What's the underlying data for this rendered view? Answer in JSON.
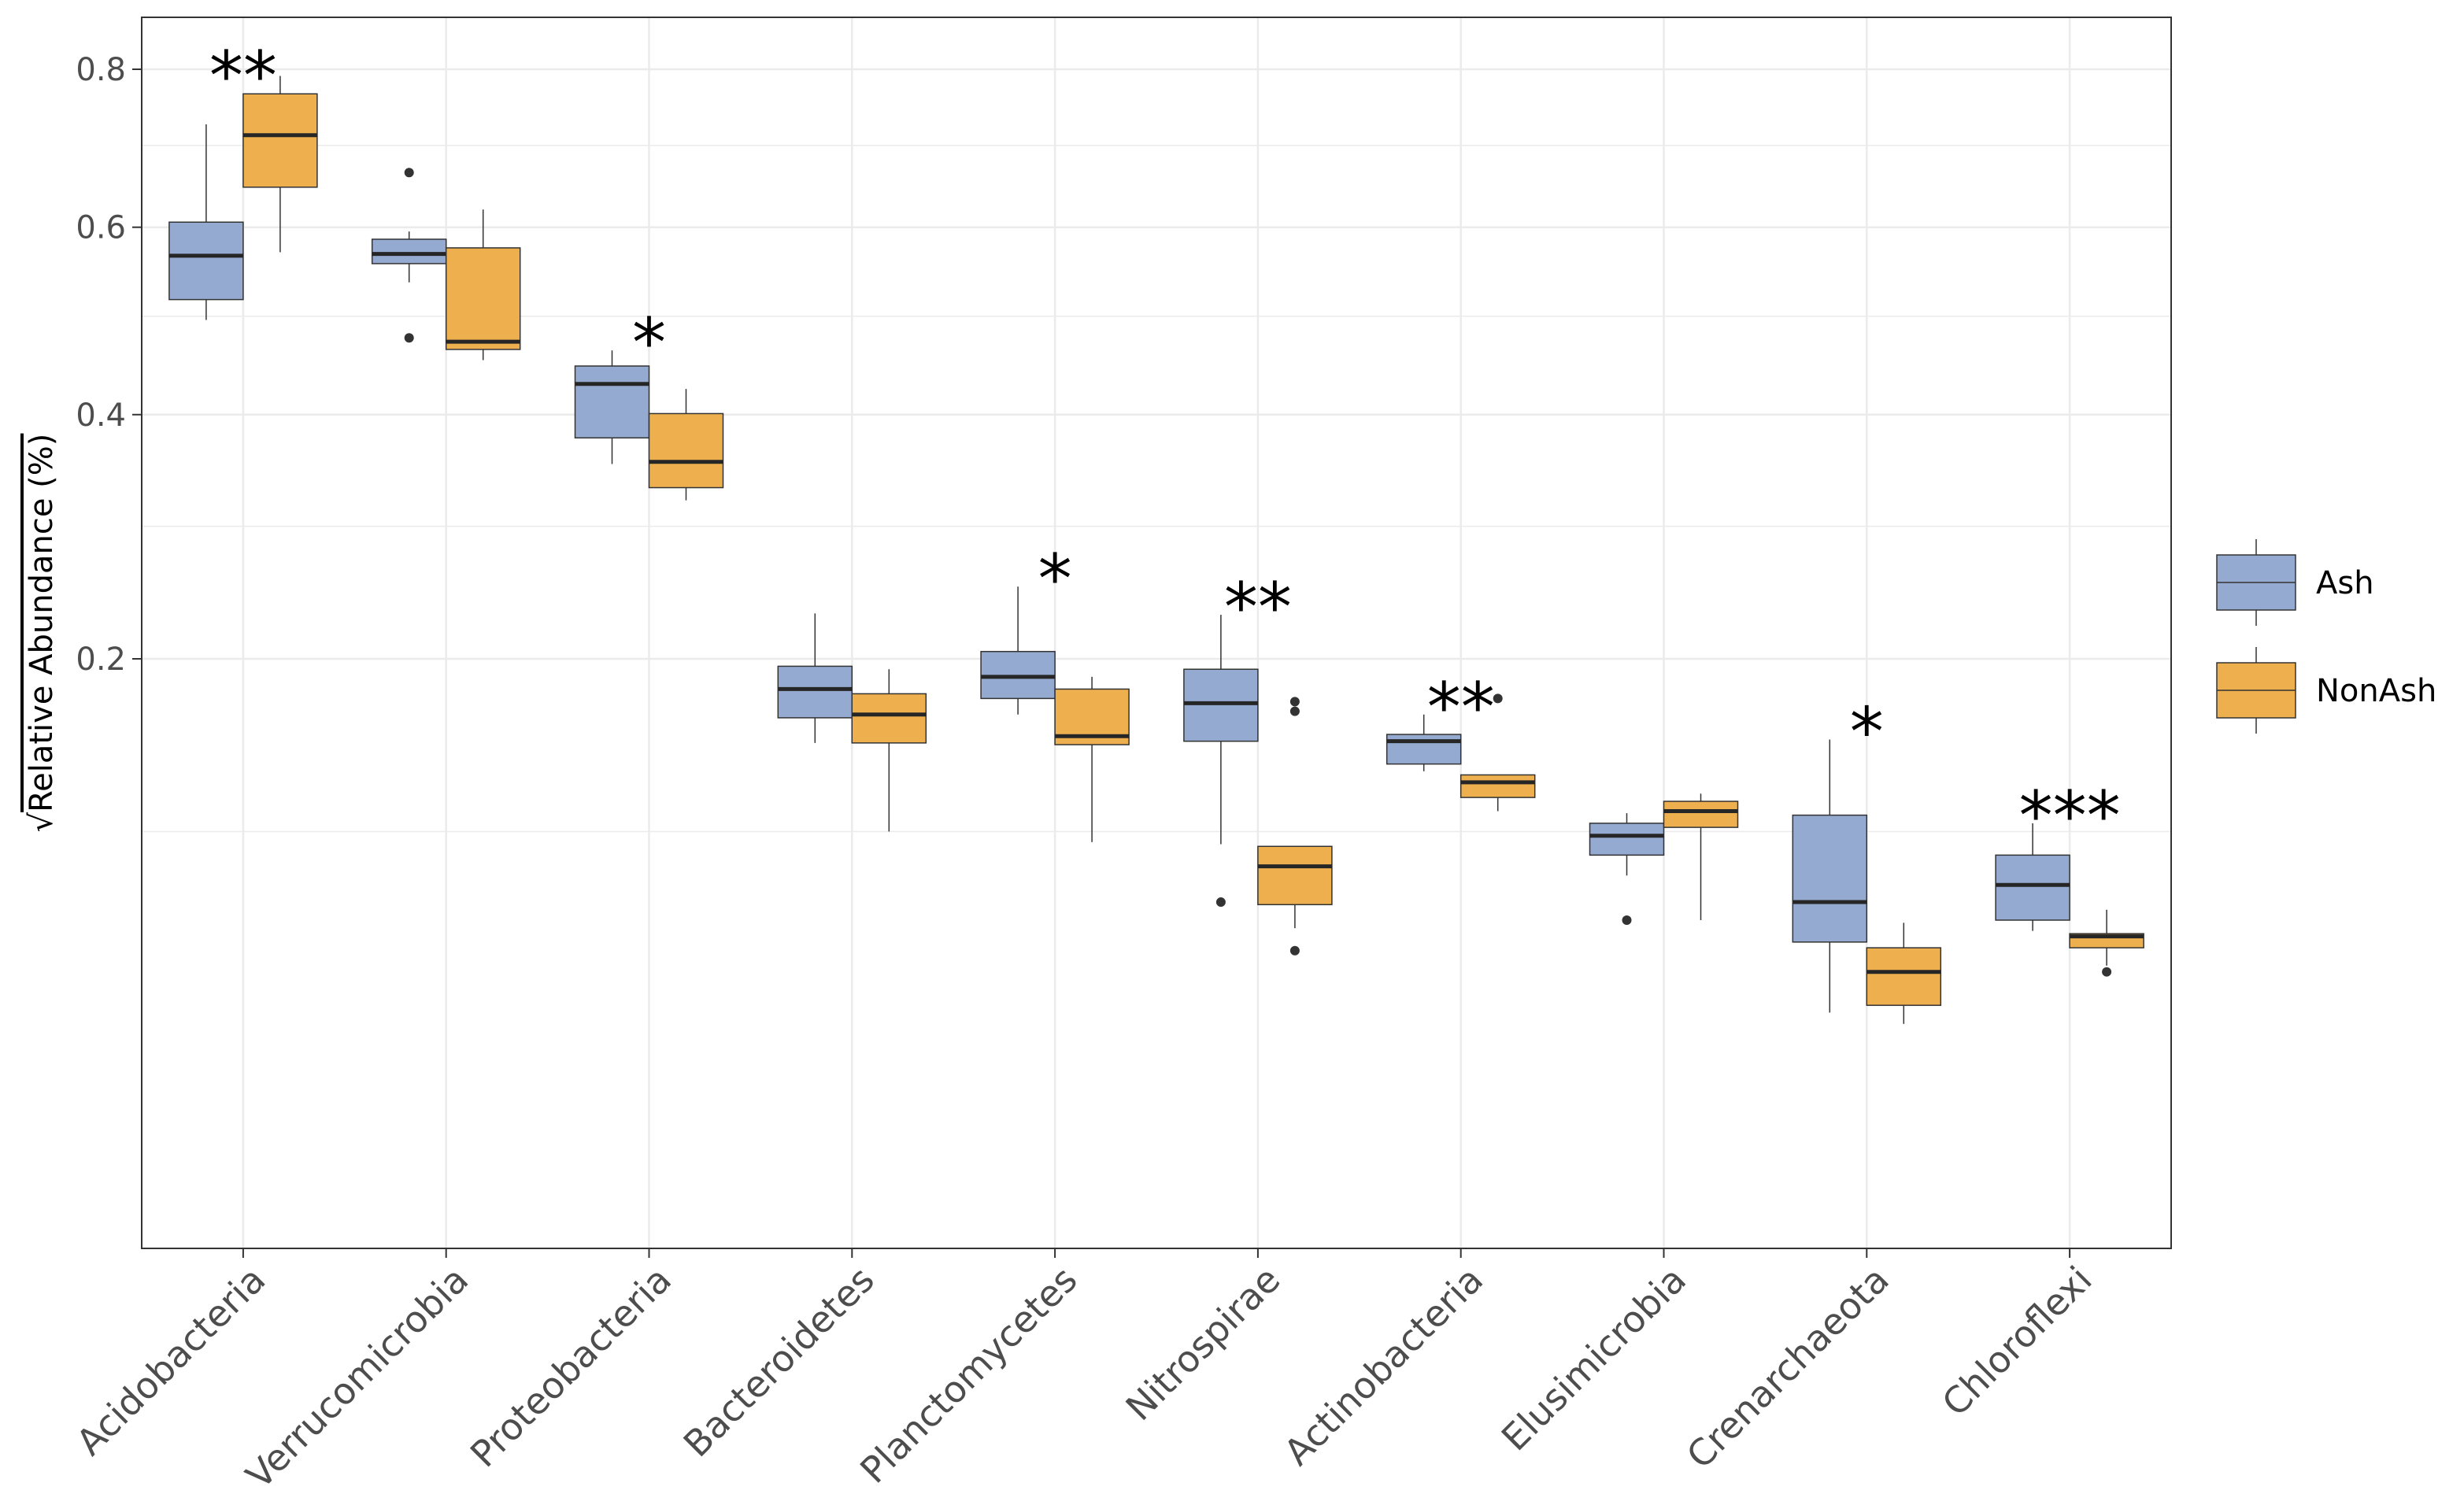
{
  "chart_data": {
    "type": "boxplot",
    "title": "",
    "xlabel": "",
    "ylabel": "Relative Abundance (%)",
    "ylabel_prefix": "√",
    "y_scale": "sqrt",
    "ylim": [
      0,
      0.84
    ],
    "y_ticks": [
      0.2,
      0.4,
      0.6,
      0.8
    ],
    "y_tick_labels": [
      "0.2",
      "0.4",
      "0.6",
      "0.8"
    ],
    "grid": true,
    "legend": {
      "position": "right",
      "entries": [
        "Ash",
        "NonAsh"
      ]
    },
    "colors": {
      "Ash": "#95aad0",
      "NonAsh": "#eeb04f",
      "median": "#262626",
      "border": "#333333",
      "grid": "#ebebeb"
    },
    "categories": [
      "Acidobacteria",
      "Verrucomicrobia",
      "Proteobacteria",
      "Bacteroidetes",
      "Planctomycetes",
      "Nitrospirae",
      "Actinobacteria",
      "Elusimicrobia",
      "Crenarchaeota",
      "Chloroflexi"
    ],
    "significance": [
      "**",
      "",
      "*",
      "",
      "*",
      "**",
      "**",
      "",
      "*",
      "***"
    ],
    "series": [
      {
        "name": "Ash",
        "boxes": [
          {
            "min": 0.496,
            "q1": 0.518,
            "median": 0.567,
            "q3": 0.606,
            "max": 0.727,
            "outliers": []
          },
          {
            "min": 0.537,
            "q1": 0.558,
            "median": 0.569,
            "q3": 0.586,
            "max": 0.595,
            "outliers": [
              0.666,
              0.477
            ]
          },
          {
            "min": 0.354,
            "q1": 0.378,
            "median": 0.43,
            "q3": 0.448,
            "max": 0.464,
            "outliers": []
          },
          {
            "min": 0.147,
            "q1": 0.162,
            "median": 0.18,
            "q3": 0.195,
            "max": 0.232,
            "outliers": []
          },
          {
            "min": 0.164,
            "q1": 0.174,
            "median": 0.188,
            "q3": 0.205,
            "max": 0.252,
            "outliers": []
          },
          {
            "min": 0.094,
            "q1": 0.148,
            "median": 0.171,
            "q3": 0.193,
            "max": 0.231,
            "outliers": [
              0.069
            ]
          },
          {
            "min": 0.131,
            "q1": 0.135,
            "median": 0.148,
            "q3": 0.152,
            "max": 0.164,
            "outliers": []
          },
          {
            "min": 0.08,
            "q1": 0.089,
            "median": 0.098,
            "q3": 0.104,
            "max": 0.109,
            "outliers": [
              0.062
            ]
          },
          {
            "min": 0.032,
            "q1": 0.054,
            "median": 0.069,
            "q3": 0.108,
            "max": 0.149,
            "outliers": []
          },
          {
            "min": 0.058,
            "q1": 0.062,
            "median": 0.076,
            "q3": 0.089,
            "max": 0.104,
            "outliers": []
          }
        ]
      },
      {
        "name": "NonAsh",
        "boxes": [
          {
            "min": 0.571,
            "q1": 0.648,
            "median": 0.713,
            "q3": 0.767,
            "max": 0.791,
            "outliers": []
          },
          {
            "min": 0.454,
            "q1": 0.465,
            "median": 0.473,
            "q3": 0.576,
            "max": 0.621,
            "outliers": []
          },
          {
            "min": 0.322,
            "q1": 0.333,
            "median": 0.356,
            "q3": 0.401,
            "max": 0.425,
            "outliers": []
          },
          {
            "min": 0.1,
            "q1": 0.147,
            "median": 0.164,
            "q3": 0.177,
            "max": 0.193,
            "outliers": []
          },
          {
            "min": 0.095,
            "q1": 0.146,
            "median": 0.151,
            "q3": 0.18,
            "max": 0.188,
            "outliers": []
          },
          {
            "min": 0.059,
            "q1": 0.068,
            "median": 0.084,
            "q3": 0.093,
            "max": 0.093,
            "outliers": [
              0.172,
              0.166,
              0.051
            ]
          },
          {
            "min": 0.11,
            "q1": 0.117,
            "median": 0.125,
            "q3": 0.129,
            "max": 0.129,
            "outliers": [
              0.174
            ]
          },
          {
            "min": 0.062,
            "q1": 0.102,
            "median": 0.11,
            "q3": 0.115,
            "max": 0.119,
            "outliers": []
          },
          {
            "min": 0.029,
            "q1": 0.034,
            "median": 0.044,
            "q3": 0.052,
            "max": 0.061,
            "outliers": []
          },
          {
            "min": 0.046,
            "q1": 0.052,
            "median": 0.056,
            "q3": 0.057,
            "max": 0.066,
            "outliers": [
              0.044
            ]
          }
        ]
      }
    ]
  }
}
